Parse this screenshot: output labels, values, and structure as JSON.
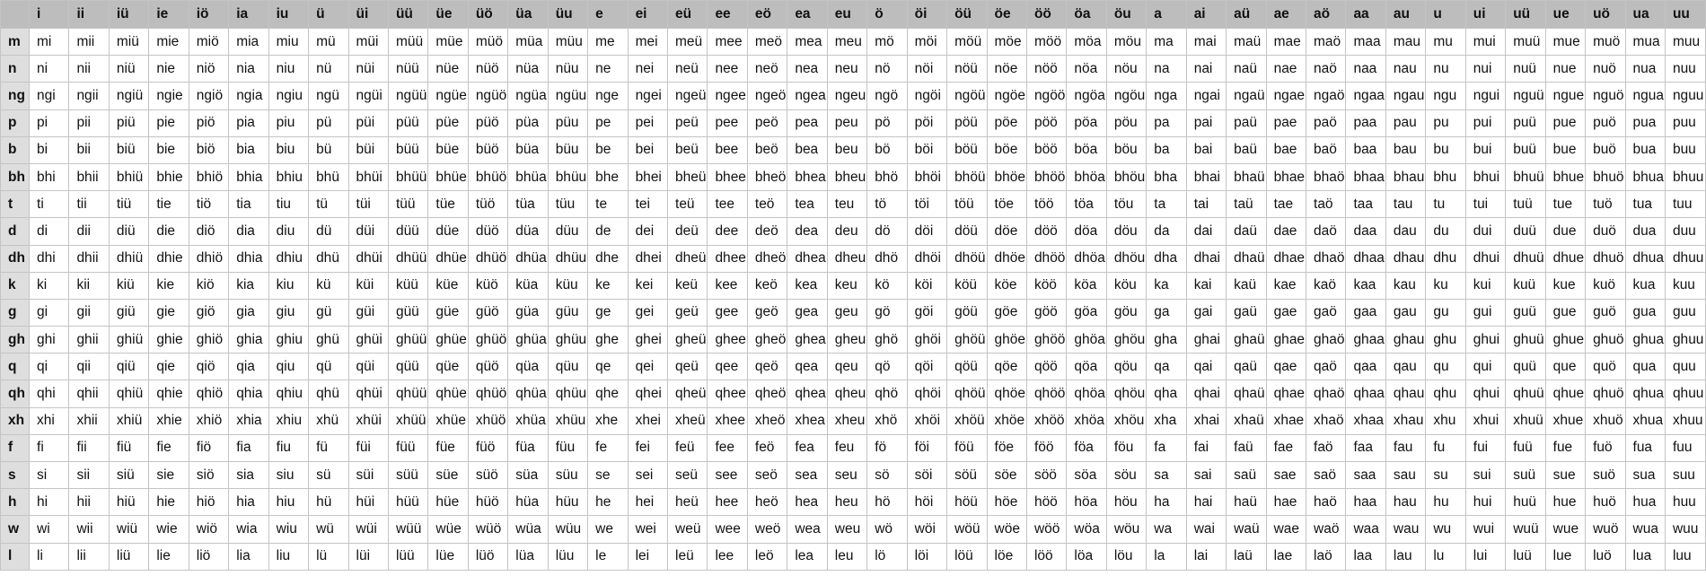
{
  "table": {
    "vowels": [
      "i",
      "ii",
      "iü",
      "ie",
      "iö",
      "ia",
      "iu",
      "ü",
      "üi",
      "üü",
      "üe",
      "üö",
      "üa",
      "üu",
      "e",
      "ei",
      "eü",
      "ee",
      "eö",
      "ea",
      "eu",
      "ö",
      "öi",
      "öü",
      "öe",
      "öö",
      "öa",
      "öu",
      "a",
      "ai",
      "aü",
      "ae",
      "aö",
      "aa",
      "au",
      "u",
      "ui",
      "uü",
      "ue",
      "uö",
      "ua",
      "uu"
    ],
    "consonants": [
      "m",
      "n",
      "ng",
      "p",
      "b",
      "bh",
      "t",
      "d",
      "dh",
      "k",
      "g",
      "gh",
      "q",
      "qh",
      "xh",
      "f",
      "s",
      "h",
      "w",
      "l"
    ]
  }
}
